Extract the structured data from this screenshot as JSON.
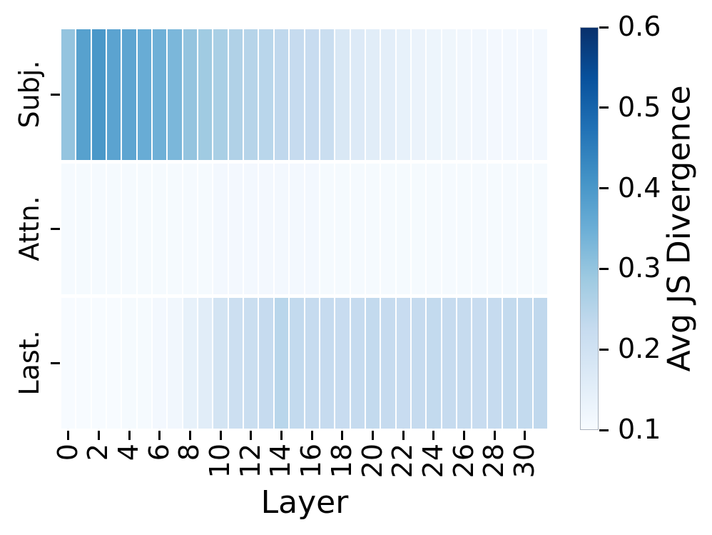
{
  "chart_data": {
    "type": "heatmap",
    "title": "",
    "xlabel": "Layer",
    "ylabel": "",
    "colorbar_label": "Avg JS Divergence",
    "colormap": "Blues",
    "vmin": 0.1,
    "vmax": 0.6,
    "rows": [
      "Subj.",
      "Attn.",
      "Last."
    ],
    "layers": [
      0,
      1,
      2,
      3,
      4,
      5,
      6,
      7,
      8,
      9,
      10,
      11,
      12,
      13,
      14,
      15,
      16,
      17,
      18,
      19,
      20,
      21,
      22,
      23,
      24,
      25,
      26,
      27,
      28,
      29,
      30,
      31
    ],
    "x_ticks": [
      0,
      2,
      4,
      6,
      8,
      10,
      12,
      14,
      16,
      18,
      20,
      22,
      24,
      26,
      28,
      30
    ],
    "colorbar_tick_values": [
      0.6,
      0.5,
      0.4,
      0.3,
      0.2,
      0.1
    ],
    "series": [
      {
        "name": "Subj.",
        "values": [
          0.3,
          0.38,
          0.4,
          0.375,
          0.37,
          0.355,
          0.345,
          0.33,
          0.3,
          0.285,
          0.27,
          0.26,
          0.25,
          0.245,
          0.235,
          0.225,
          0.22,
          0.215,
          0.175,
          0.165,
          0.155,
          0.15,
          0.14,
          0.13,
          0.125,
          0.12,
          0.115,
          0.115,
          0.11,
          0.11,
          0.11,
          0.11
        ]
      },
      {
        "name": "Attn.",
        "values": [
          0.105,
          0.105,
          0.105,
          0.105,
          0.105,
          0.105,
          0.105,
          0.105,
          0.105,
          0.105,
          0.11,
          0.11,
          0.11,
          0.11,
          0.11,
          0.11,
          0.11,
          0.105,
          0.105,
          0.105,
          0.105,
          0.105,
          0.105,
          0.105,
          0.105,
          0.105,
          0.105,
          0.105,
          0.105,
          0.105,
          0.105,
          0.105
        ]
      },
      {
        "name": "Last.",
        "values": [
          0.1,
          0.1,
          0.1,
          0.1,
          0.105,
          0.105,
          0.11,
          0.115,
          0.14,
          0.155,
          0.19,
          0.21,
          0.215,
          0.225,
          0.245,
          0.23,
          0.225,
          0.225,
          0.22,
          0.225,
          0.23,
          0.225,
          0.22,
          0.225,
          0.23,
          0.225,
          0.225,
          0.22,
          0.225,
          0.23,
          0.23,
          0.235
        ]
      }
    ]
  },
  "colors": {
    "background": "#ffffff",
    "text": "#000000",
    "tick": "#000000",
    "cell_gap": "#ffffff",
    "colorbar_outline": "#a9b1bc",
    "colormap_stops": [
      "#f7fbff",
      "#deebf7",
      "#c6dbef",
      "#9ecae1",
      "#6baed6",
      "#4292c6",
      "#2171b5",
      "#08519c",
      "#08306b"
    ]
  }
}
